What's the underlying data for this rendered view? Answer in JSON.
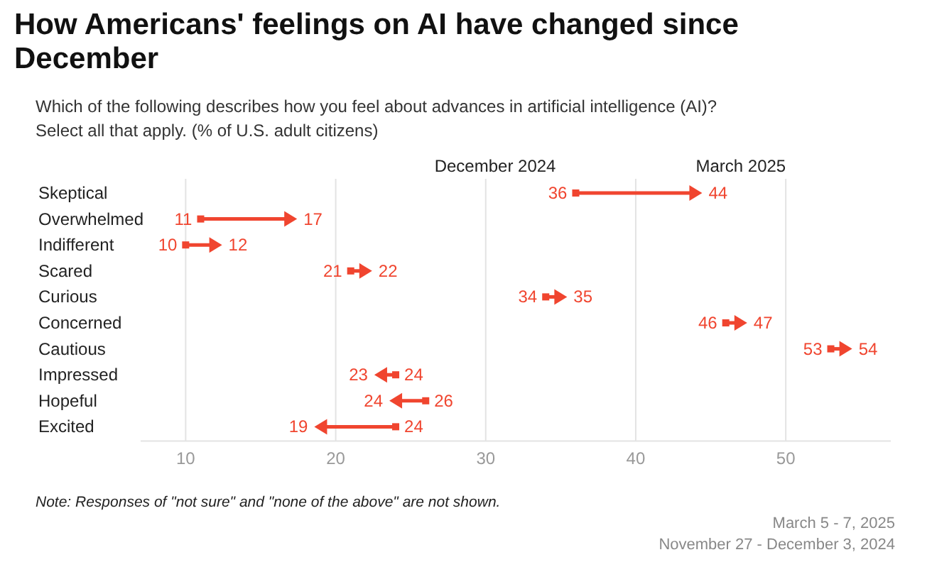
{
  "chart_data": {
    "type": "scatter",
    "orientation": "horizontal",
    "title": "How Americans' feelings on AI have changed since December",
    "subtitle": "Which of the following describes how you feel about advances in artificial intelligence (AI)? Select all that apply. (% of U.S. adult citizens)",
    "categories": [
      "Skeptical",
      "Overwhelmed",
      "Indifferent",
      "Scared",
      "Curious",
      "Concerned",
      "Cautious",
      "Impressed",
      "Hopeful",
      "Excited"
    ],
    "series": [
      {
        "name": "December 2024",
        "color": "#f0452f",
        "marker": "square",
        "values": [
          36,
          11,
          10,
          21,
          34,
          46,
          53,
          24,
          26,
          24
        ]
      },
      {
        "name": "March 2025",
        "color": "#f0452f",
        "marker": "triangle",
        "values": [
          44,
          17,
          12,
          22,
          35,
          47,
          54,
          23,
          24,
          19
        ]
      }
    ],
    "xlim": [
      7,
      57
    ],
    "xticks": [
      10,
      20,
      30,
      40,
      50
    ],
    "grid": "x",
    "data_labels": true,
    "annotations": [
      "Note: Responses of \"not sure\" and \"none of the above\" are not shown.",
      "March 5 - 7, 2025",
      "November 27 - December 3, 2024"
    ]
  }
}
